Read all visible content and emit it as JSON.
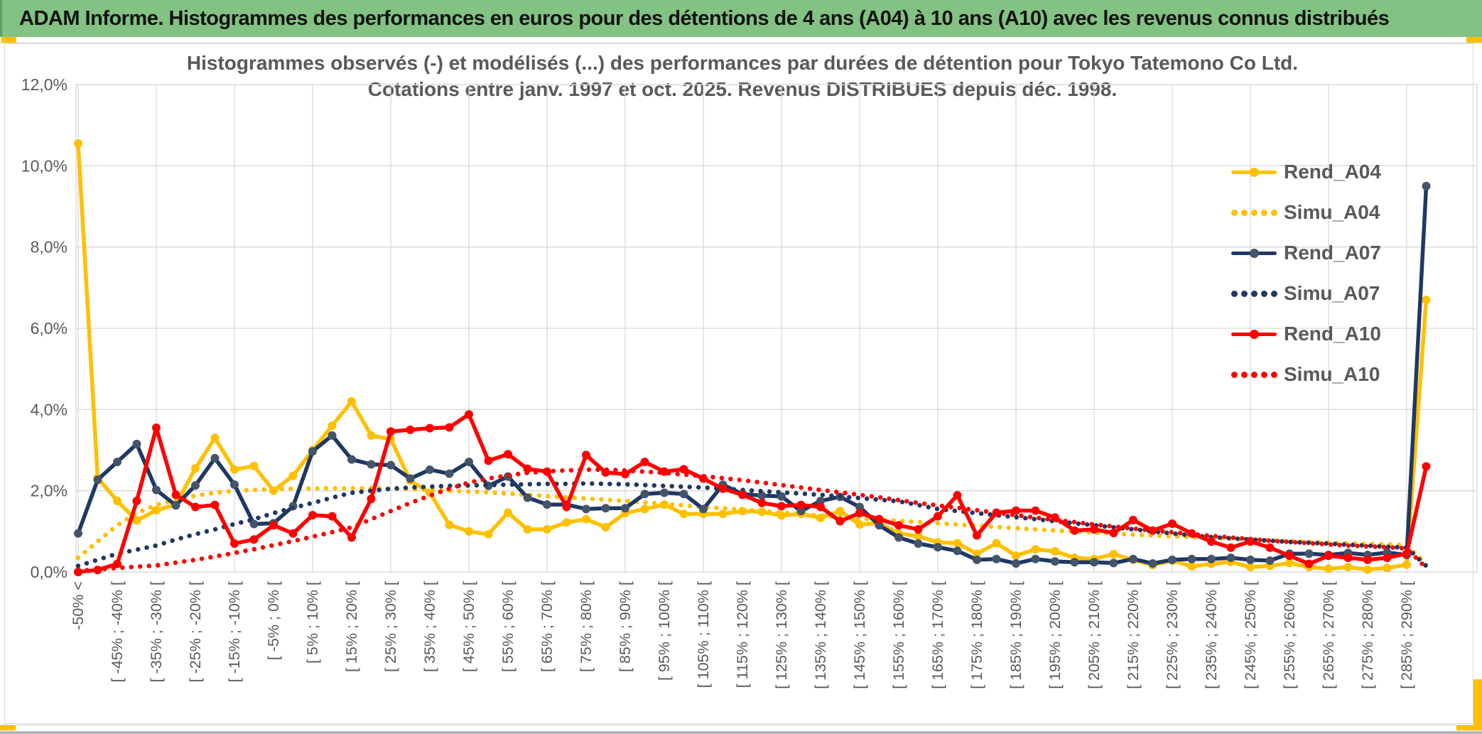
{
  "header": {
    "title": "ADAM Informe. Histogrammes des performances en euros pour des détentions de 4 ans (A04) à 10 ans (A10) avec les revenus connus distribués"
  },
  "chart": {
    "title_line1": "Histogrammes observés (-) et modélisés (...) des performances par durées de détention pour Tokyo Tatemono Co Ltd.",
    "title_line2": "Cotations entre janv. 1997 et oct. 2025. Revenus DISTRIBUES depuis déc. 1998.",
    "y_axis_labels": [
      "12,0%",
      "10,0%",
      "8,0%",
      "6,0%",
      "4,0%",
      "2,0%",
      "0,0%"
    ]
  },
  "colors": {
    "header_bg": "#82C282",
    "gold_accent": "#FFC000",
    "grid": "#D9D9D9",
    "axis_text": "#595959",
    "series_gold": "#FFC000",
    "series_navy": "#1F3864",
    "series_navy_marker": "#44546A",
    "series_red": "#FF0000"
  },
  "chart_data": {
    "type": "line",
    "title": "Histogrammes observés (-) et modélisés (...) des performances par durées de détention pour Tokyo Tatemono Co Ltd. Cotations entre janv. 1997 et oct. 2025. Revenus DISTRIBUES depuis déc. 1998.",
    "ylabel": "",
    "xlabel": "",
    "ylim": [
      0,
      12
    ],
    "y_tick_step_pct": 2,
    "grid": true,
    "legend_position": "right-inside",
    "bins": 70,
    "labels_every": 2,
    "x_labels": [
      "-50% <",
      "[ -45% ; -40% [",
      "[ -35% ; -30% [",
      "[ -25% ; -20% [",
      "[ -15% ; -10% [",
      "[ -5% ; 0% [",
      "[ 5% ; 10% [",
      "[ 15% ; 20% [",
      "[ 25% ; 30% [",
      "[ 35% ; 40% [",
      "[ 45% ; 50% [",
      "[ 55% ; 60% [",
      "[ 65% ; 70% [",
      "[ 75% ; 80% [",
      "[ 85% ; 90% [",
      "[ 95% ; 100% [",
      "[ 105% ; 110% [",
      "[ 115% ; 120% [",
      "[ 125% ; 130% [",
      "[ 135% ; 140% [",
      "[ 145% ; 150% [",
      "[ 155% ; 160% [",
      "[ 165% ; 170% [",
      "[ 175% ; 180% [",
      "[ 185% ; 190% [",
      "[ 195% ; 200% [",
      "[ 205% ; 210% [",
      "[ 215% ; 220% [",
      "[ 225% ; 230% [",
      "[ 235% ; 240% [",
      "[ 245% ; 250% [",
      "[ 255% ; 260% [",
      "[ 265% ; 270% [",
      "[ 275% ; 280% [",
      "[ 285% ; 290% ["
    ],
    "series": [
      {
        "name": "Rend_A04",
        "style": "solid",
        "color": "#FFC000",
        "marker": "#FFC000",
        "values": [
          10.55,
          2.32,
          1.75,
          1.27,
          1.52,
          1.66,
          2.55,
          3.3,
          2.52,
          2.61,
          2.0,
          2.37,
          3.0,
          3.6,
          4.2,
          3.36,
          3.27,
          2.25,
          1.95,
          1.16,
          1.0,
          0.93,
          1.46,
          1.05,
          1.05,
          1.22,
          1.3,
          1.1,
          1.45,
          1.55,
          1.66,
          1.43,
          1.43,
          1.43,
          1.5,
          1.48,
          1.39,
          1.43,
          1.33,
          1.5,
          1.17,
          1.2,
          0.95,
          0.88,
          0.73,
          0.71,
          0.45,
          0.71,
          0.4,
          0.56,
          0.51,
          0.35,
          0.32,
          0.44,
          0.3,
          0.17,
          0.28,
          0.14,
          0.2,
          0.25,
          0.12,
          0.15,
          0.22,
          0.12,
          0.08,
          0.12,
          0.06,
          0.1,
          0.18,
          6.7
        ]
      },
      {
        "name": "Simu_A04",
        "style": "dotted",
        "color": "#FFC000",
        "values": [
          0.35,
          0.75,
          1.15,
          1.45,
          1.65,
          1.78,
          1.88,
          1.95,
          2.0,
          2.02,
          2.04,
          2.05,
          2.06,
          2.06,
          2.06,
          2.06,
          2.05,
          2.04,
          2.02,
          2.0,
          1.98,
          1.96,
          1.93,
          1.9,
          1.87,
          1.84,
          1.81,
          1.78,
          1.75,
          1.71,
          1.68,
          1.64,
          1.6,
          1.57,
          1.53,
          1.5,
          1.46,
          1.43,
          1.39,
          1.36,
          1.32,
          1.29,
          1.26,
          1.23,
          1.2,
          1.17,
          1.14,
          1.11,
          1.08,
          1.05,
          1.02,
          1.0,
          0.97,
          0.95,
          0.92,
          0.9,
          0.88,
          0.86,
          0.84,
          0.82,
          0.8,
          0.78,
          0.76,
          0.74,
          0.72,
          0.71,
          0.69,
          0.68,
          0.66,
          0.2
        ]
      },
      {
        "name": "Rend_A07",
        "style": "solid",
        "color": "#1F3864",
        "marker": "#44546A",
        "values": [
          0.95,
          2.27,
          2.71,
          3.15,
          2.02,
          1.64,
          2.13,
          2.8,
          2.15,
          1.18,
          1.2,
          1.62,
          2.97,
          3.36,
          2.77,
          2.65,
          2.63,
          2.3,
          2.52,
          2.42,
          2.71,
          2.12,
          2.35,
          1.83,
          1.66,
          1.66,
          1.55,
          1.57,
          1.57,
          1.92,
          1.95,
          1.92,
          1.55,
          2.15,
          1.92,
          1.88,
          1.86,
          1.5,
          1.75,
          1.85,
          1.6,
          1.15,
          0.85,
          0.7,
          0.61,
          0.52,
          0.3,
          0.32,
          0.21,
          0.32,
          0.26,
          0.24,
          0.24,
          0.22,
          0.32,
          0.21,
          0.3,
          0.32,
          0.32,
          0.35,
          0.3,
          0.28,
          0.45,
          0.45,
          0.42,
          0.47,
          0.42,
          0.48,
          0.42,
          9.5
        ]
      },
      {
        "name": "Simu_A07",
        "style": "dotted",
        "color": "#1F3864",
        "values": [
          0.15,
          0.3,
          0.45,
          0.55,
          0.65,
          0.8,
          0.93,
          1.05,
          1.18,
          1.3,
          1.45,
          1.58,
          1.7,
          1.83,
          1.95,
          2.0,
          2.05,
          2.08,
          2.1,
          2.12,
          2.13,
          2.14,
          2.15,
          2.16,
          2.17,
          2.17,
          2.18,
          2.17,
          2.16,
          2.14,
          2.12,
          2.1,
          2.08,
          2.05,
          2.02,
          1.99,
          1.96,
          1.93,
          1.9,
          1.86,
          1.82,
          1.78,
          1.74,
          1.65,
          1.55,
          1.5,
          1.45,
          1.4,
          1.35,
          1.3,
          1.25,
          1.2,
          1.15,
          1.1,
          1.05,
          1.0,
          0.95,
          0.9,
          0.86,
          0.83,
          0.8,
          0.77,
          0.74,
          0.72,
          0.7,
          0.67,
          0.65,
          0.62,
          0.6,
          0.15
        ]
      },
      {
        "name": "Rend_A10",
        "style": "solid",
        "color": "#FF0000",
        "marker": "#FF0000",
        "values": [
          0.0,
          0.05,
          0.2,
          1.75,
          3.55,
          1.9,
          1.6,
          1.65,
          0.7,
          0.8,
          1.15,
          0.95,
          1.4,
          1.37,
          0.85,
          1.8,
          3.46,
          3.5,
          3.54,
          3.56,
          3.88,
          2.74,
          2.9,
          2.54,
          2.47,
          1.6,
          2.88,
          2.45,
          2.41,
          2.71,
          2.47,
          2.53,
          2.3,
          2.05,
          1.9,
          1.7,
          1.62,
          1.65,
          1.6,
          1.25,
          1.45,
          1.3,
          1.15,
          1.05,
          1.37,
          1.89,
          0.9,
          1.46,
          1.51,
          1.51,
          1.34,
          1.02,
          1.05,
          0.96,
          1.28,
          1.02,
          1.19,
          0.95,
          0.75,
          0.6,
          0.75,
          0.6,
          0.4,
          0.2,
          0.4,
          0.35,
          0.3,
          0.35,
          0.45,
          2.6
        ]
      },
      {
        "name": "Simu_A10",
        "style": "dotted",
        "color": "#FF0000",
        "values": [
          0.03,
          0.06,
          0.1,
          0.13,
          0.16,
          0.23,
          0.3,
          0.38,
          0.47,
          0.56,
          0.66,
          0.76,
          0.87,
          0.98,
          1.1,
          1.3,
          1.5,
          1.7,
          1.88,
          2.05,
          2.2,
          2.3,
          2.38,
          2.44,
          2.48,
          2.5,
          2.52,
          2.52,
          2.5,
          2.47,
          2.44,
          2.4,
          2.36,
          2.31,
          2.26,
          2.2,
          2.14,
          2.08,
          2.02,
          1.96,
          1.9,
          1.84,
          1.77,
          1.7,
          1.64,
          1.58,
          1.52,
          1.46,
          1.4,
          1.34,
          1.28,
          1.23,
          1.17,
          1.12,
          1.07,
          1.02,
          0.98,
          0.93,
          0.89,
          0.85,
          0.81,
          0.77,
          0.74,
          0.71,
          0.68,
          0.65,
          0.63,
          0.61,
          0.58,
          0.1
        ]
      }
    ]
  }
}
